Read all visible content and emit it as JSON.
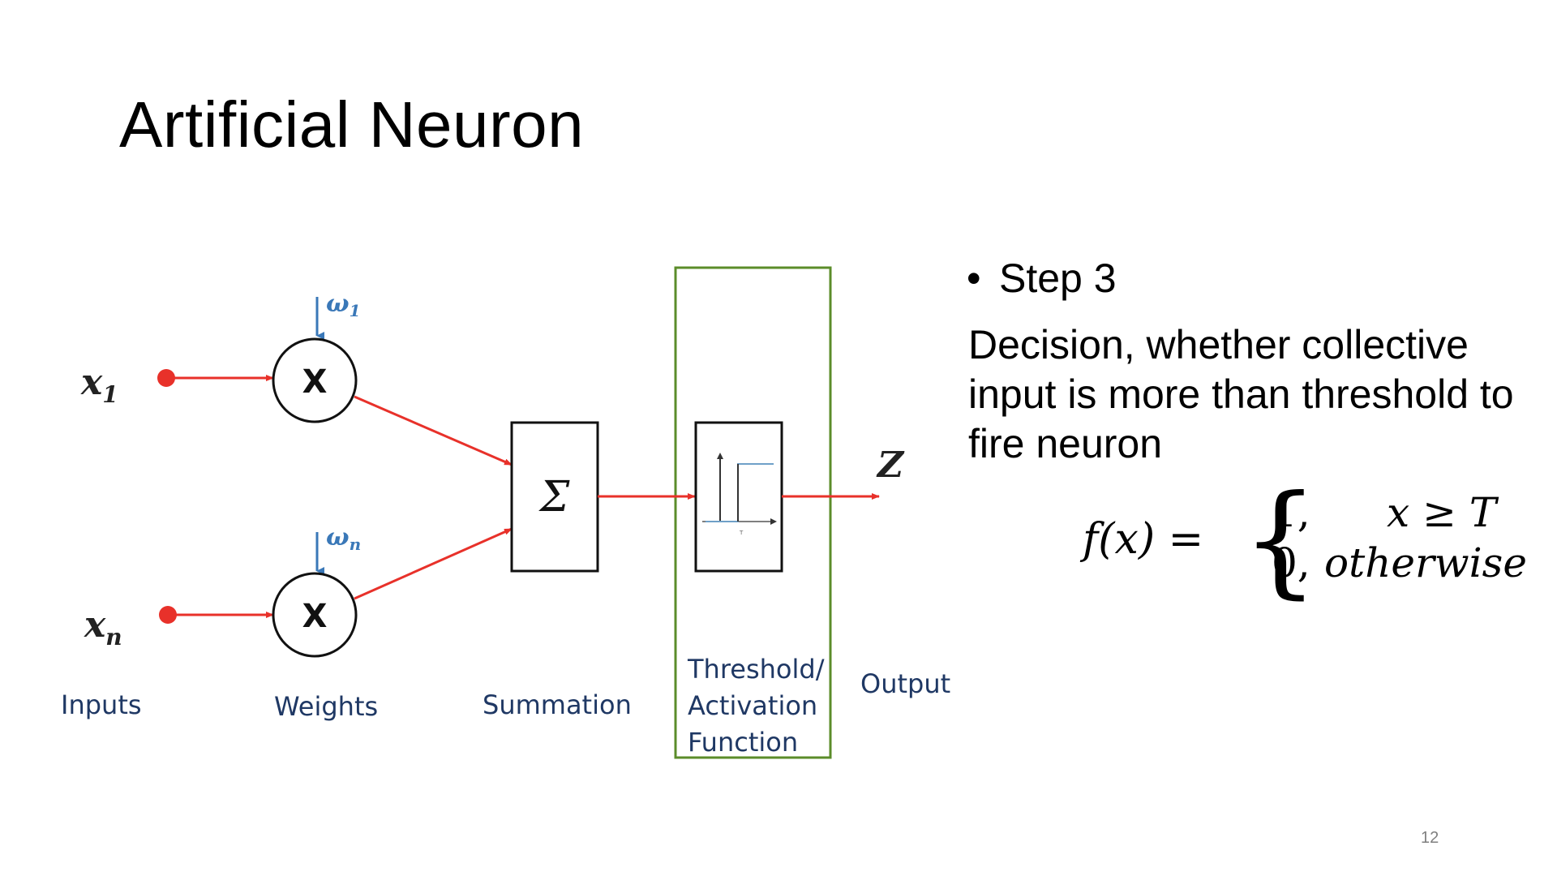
{
  "slide": {
    "title": "Artificial Neuron",
    "page_number": "12"
  },
  "diagram": {
    "inputs": [
      {
        "symbol": "x",
        "subscript": "1"
      },
      {
        "symbol": "x",
        "subscript": "n"
      }
    ],
    "weights": [
      {
        "symbol": "ω",
        "subscript": "1"
      },
      {
        "symbol": "ω",
        "subscript": "n"
      }
    ],
    "multiply_symbol": "X",
    "sum_symbol": "Σ",
    "output_symbol": "Z",
    "step_tick_label": "T",
    "labels": {
      "inputs": "Inputs",
      "weights": "Weights",
      "summation": "Summation",
      "threshold_line1": "Threshold/",
      "threshold_line2": "Activation",
      "threshold_line3": "Function",
      "output": "Output"
    },
    "colors": {
      "signal_line": "#e8312a",
      "input_dot": "#e8312a",
      "weight_arrow": "#3a78b8",
      "highlight_box": "#5b8c2a",
      "label_text": "#1f3864"
    }
  },
  "text_panel": {
    "bullet": "•",
    "step": "Step 3",
    "description": "Decision, whether collective input is more than threshold to fire neuron"
  },
  "formula": {
    "lhs": "f(x) =",
    "brace": "{",
    "case1_value": "1,",
    "case1_condition": "x ≥ T",
    "case2_value": "0,",
    "case2_condition": "otherwise"
  }
}
